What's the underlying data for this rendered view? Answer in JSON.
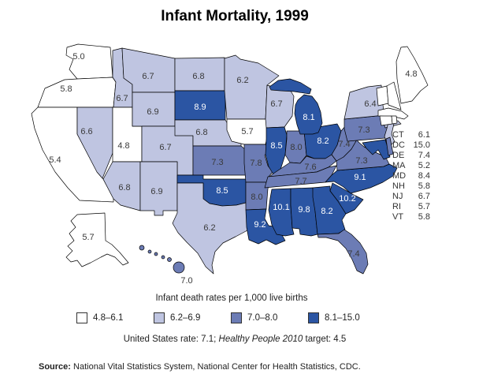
{
  "title": "Infant Mortality, 1999",
  "colors": {
    "classes": [
      "#FFFFFF",
      "#BFC5E1",
      "#6C7CB5",
      "#2B55A3"
    ],
    "border": "#000000",
    "label": "#3A3A3A",
    "label_on_dark": "#FFFFFF"
  },
  "legend": {
    "caption": "Infant death rates per 1,000 live births",
    "items": [
      {
        "label": "4.8–6.1",
        "cls": 1
      },
      {
        "label": "6.2–6.9",
        "cls": 2
      },
      {
        "label": "7.0–8.0",
        "cls": 3
      },
      {
        "label": "8.1–15.0",
        "cls": 4
      }
    ]
  },
  "footnote": {
    "prefix": "United States rate: 7.1; ",
    "italic": "Healthy People 2010",
    "suffix": " target: 4.5"
  },
  "source": {
    "label": "Source:",
    "text": " National Vital Statistics System, National Center for Health Statistics, CDC."
  },
  "side_list": {
    "items": [
      {
        "abbr": "CT",
        "value": "6.1"
      },
      {
        "abbr": "DC",
        "value": "15.0"
      },
      {
        "abbr": "DE",
        "value": "7.4"
      },
      {
        "abbr": "MA",
        "value": "5.2"
      },
      {
        "abbr": "MD",
        "value": "8.4"
      },
      {
        "abbr": "NH",
        "value": "5.8"
      },
      {
        "abbr": "NJ",
        "value": "6.7"
      },
      {
        "abbr": "RI",
        "value": "5.7"
      },
      {
        "abbr": "VT",
        "value": "5.8"
      }
    ]
  },
  "chart_data": {
    "type": "choropleth",
    "title": "Infant Mortality, 1999",
    "unit_caption": "Infant death rates per 1,000 live births",
    "us_rate": "7.1",
    "healthy_people_2010_target": "4.5",
    "classes": [
      {
        "range": "4.8–6.1",
        "color": "#FFFFFF"
      },
      {
        "range": "6.2–6.9",
        "color": "#BFC5E1"
      },
      {
        "range": "7.0–8.0",
        "color": "#6C7CB5"
      },
      {
        "range": "8.1–15.0",
        "color": "#2B55A3"
      }
    ],
    "states": [
      {
        "id": "WA",
        "value": "5.0",
        "cls": 1
      },
      {
        "id": "OR",
        "value": "5.8",
        "cls": 1
      },
      {
        "id": "CA",
        "value": "5.4",
        "cls": 1
      },
      {
        "id": "AK",
        "value": "5.7",
        "cls": 1
      },
      {
        "id": "NV",
        "value": "6.6",
        "cls": 2
      },
      {
        "id": "ID",
        "value": "6.7",
        "cls": 2
      },
      {
        "id": "UT",
        "value": "4.8",
        "cls": 1
      },
      {
        "id": "MT",
        "value": "6.7",
        "cls": 2
      },
      {
        "id": "WY",
        "value": "6.9",
        "cls": 2
      },
      {
        "id": "CO",
        "value": "6.7",
        "cls": 2
      },
      {
        "id": "AZ",
        "value": "6.8",
        "cls": 2
      },
      {
        "id": "NM",
        "value": "6.9",
        "cls": 2
      },
      {
        "id": "ND",
        "value": "6.8",
        "cls": 2
      },
      {
        "id": "SD",
        "value": "8.9",
        "cls": 4
      },
      {
        "id": "NE",
        "value": "6.8",
        "cls": 2
      },
      {
        "id": "KS",
        "value": "7.3",
        "cls": 3
      },
      {
        "id": "OK",
        "value": "8.5",
        "cls": 4
      },
      {
        "id": "TX",
        "value": "6.2",
        "cls": 2
      },
      {
        "id": "MN",
        "value": "6.2",
        "cls": 2
      },
      {
        "id": "IA",
        "value": "5.7",
        "cls": 1
      },
      {
        "id": "MO",
        "value": "7.8",
        "cls": 3
      },
      {
        "id": "AR",
        "value": "8.0",
        "cls": 3
      },
      {
        "id": "LA",
        "value": "9.2",
        "cls": 4
      },
      {
        "id": "WI",
        "value": "6.7",
        "cls": 2
      },
      {
        "id": "IL",
        "value": "8.5",
        "cls": 4
      },
      {
        "id": "IN",
        "value": "8.0",
        "cls": 3
      },
      {
        "id": "OH",
        "value": "8.2",
        "cls": 4
      },
      {
        "id": "MI",
        "value": "8.1",
        "cls": 4
      },
      {
        "id": "KY",
        "value": "7.6",
        "cls": 3
      },
      {
        "id": "TN",
        "value": "7.7",
        "cls": 3
      },
      {
        "id": "MS",
        "value": "10.1",
        "cls": 4
      },
      {
        "id": "AL",
        "value": "9.8",
        "cls": 4
      },
      {
        "id": "GA",
        "value": "8.2",
        "cls": 4
      },
      {
        "id": "FL",
        "value": "7.4",
        "cls": 3
      },
      {
        "id": "SC",
        "value": "10.2",
        "cls": 4
      },
      {
        "id": "NC",
        "value": "9.1",
        "cls": 4
      },
      {
        "id": "VA",
        "value": "7.3",
        "cls": 3
      },
      {
        "id": "WV",
        "value": "7.4",
        "cls": 3
      },
      {
        "id": "PA",
        "value": "7.3",
        "cls": 3
      },
      {
        "id": "NY",
        "value": "6.4",
        "cls": 2
      },
      {
        "id": "NJ",
        "value": "6.7",
        "cls": 2
      },
      {
        "id": "VT",
        "value": "5.8",
        "cls": 1
      },
      {
        "id": "NH",
        "value": "5.8",
        "cls": 1
      },
      {
        "id": "ME",
        "value": "4.8",
        "cls": 1
      },
      {
        "id": "MA",
        "value": "5.2",
        "cls": 1
      },
      {
        "id": "CT",
        "value": "6.1",
        "cls": 1
      },
      {
        "id": "RI",
        "value": "5.7",
        "cls": 1
      },
      {
        "id": "MD",
        "value": "8.4",
        "cls": 4
      },
      {
        "id": "DE",
        "value": "7.4",
        "cls": 3
      },
      {
        "id": "DC",
        "value": "15.0",
        "cls": 4
      },
      {
        "id": "HI",
        "value": "7.0",
        "cls": 3
      }
    ]
  }
}
